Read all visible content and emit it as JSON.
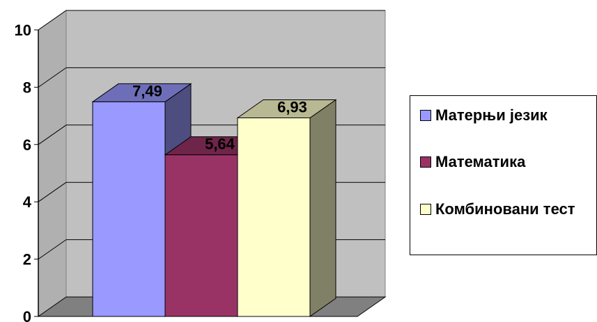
{
  "chart_data": {
    "type": "bar",
    "categories": [
      "Матерњи језик",
      "Математика",
      "Комбиновани тест"
    ],
    "values": [
      7.49,
      5.64,
      6.93
    ],
    "data_labels": [
      "7,49",
      "5,64",
      "6,93"
    ],
    "colors": [
      "#9999ff",
      "#993366",
      "#ffffcc"
    ],
    "ylim": [
      0,
      10
    ],
    "yticks": [
      "0",
      "2",
      "4",
      "6",
      "8",
      "10"
    ],
    "title": "",
    "xlabel": "",
    "ylabel": "",
    "grid": true,
    "legend_position": "right"
  },
  "legend": {
    "items": [
      "Матерњи језик",
      "Математика",
      "Комбиновани тест"
    ]
  }
}
